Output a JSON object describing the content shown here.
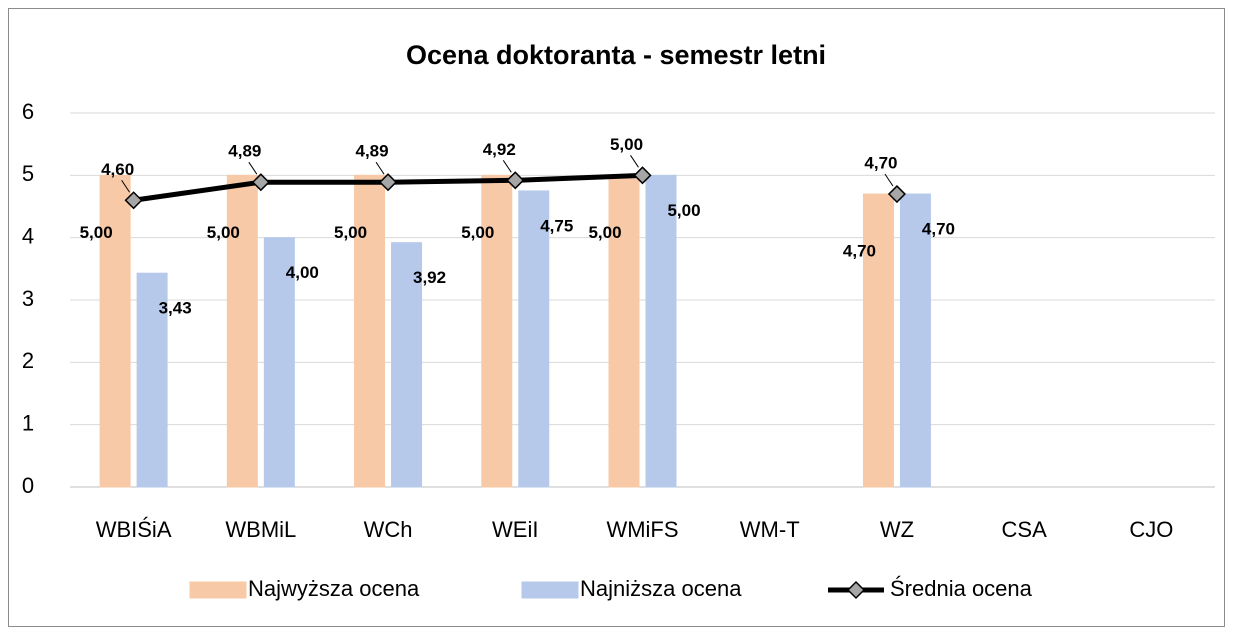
{
  "chart_data": {
    "type": "bar_line",
    "title": "Ocena doktoranta - semestr letni",
    "categories": [
      "WBIŚiA",
      "WBMiL",
      "WCh",
      "WEiI",
      "WMiFS",
      "WM-T",
      "WZ",
      "CSA",
      "CJO"
    ],
    "series": [
      {
        "name": "Najwyższa ocena",
        "type": "bar",
        "color": "#f8c9a6",
        "values": [
          5,
          5,
          5,
          5,
          5,
          null,
          4.7,
          null,
          null
        ],
        "value_labels": [
          "5,00",
          "5,00",
          "5,00",
          "5,00",
          "5,00",
          null,
          "4,70",
          null,
          null
        ]
      },
      {
        "name": "Najniższa ocena",
        "type": "bar",
        "color": "#b7c9ea",
        "values": [
          3.43,
          4,
          3.92,
          4.75,
          5,
          null,
          4.7,
          null,
          null
        ],
        "value_labels": [
          "3,43",
          "4,00",
          "3,92",
          "4,75",
          "5,00",
          null,
          "4,70",
          null,
          null
        ]
      },
      {
        "name": "Średnia ocena",
        "type": "line",
        "color": "#000000",
        "marker_color": "#a6a6a6",
        "values": [
          4.6,
          4.89,
          4.89,
          4.92,
          5,
          null,
          4.7,
          null,
          null
        ],
        "value_labels": [
          "4,60",
          "4,89",
          "4,89",
          "4,92",
          "5,00",
          null,
          "4,70",
          null,
          null
        ]
      }
    ],
    "ylim": [
      0,
      6
    ],
    "yticks": [
      0,
      1,
      2,
      3,
      4,
      5,
      6
    ],
    "grid": true,
    "legend": "bottom"
  }
}
